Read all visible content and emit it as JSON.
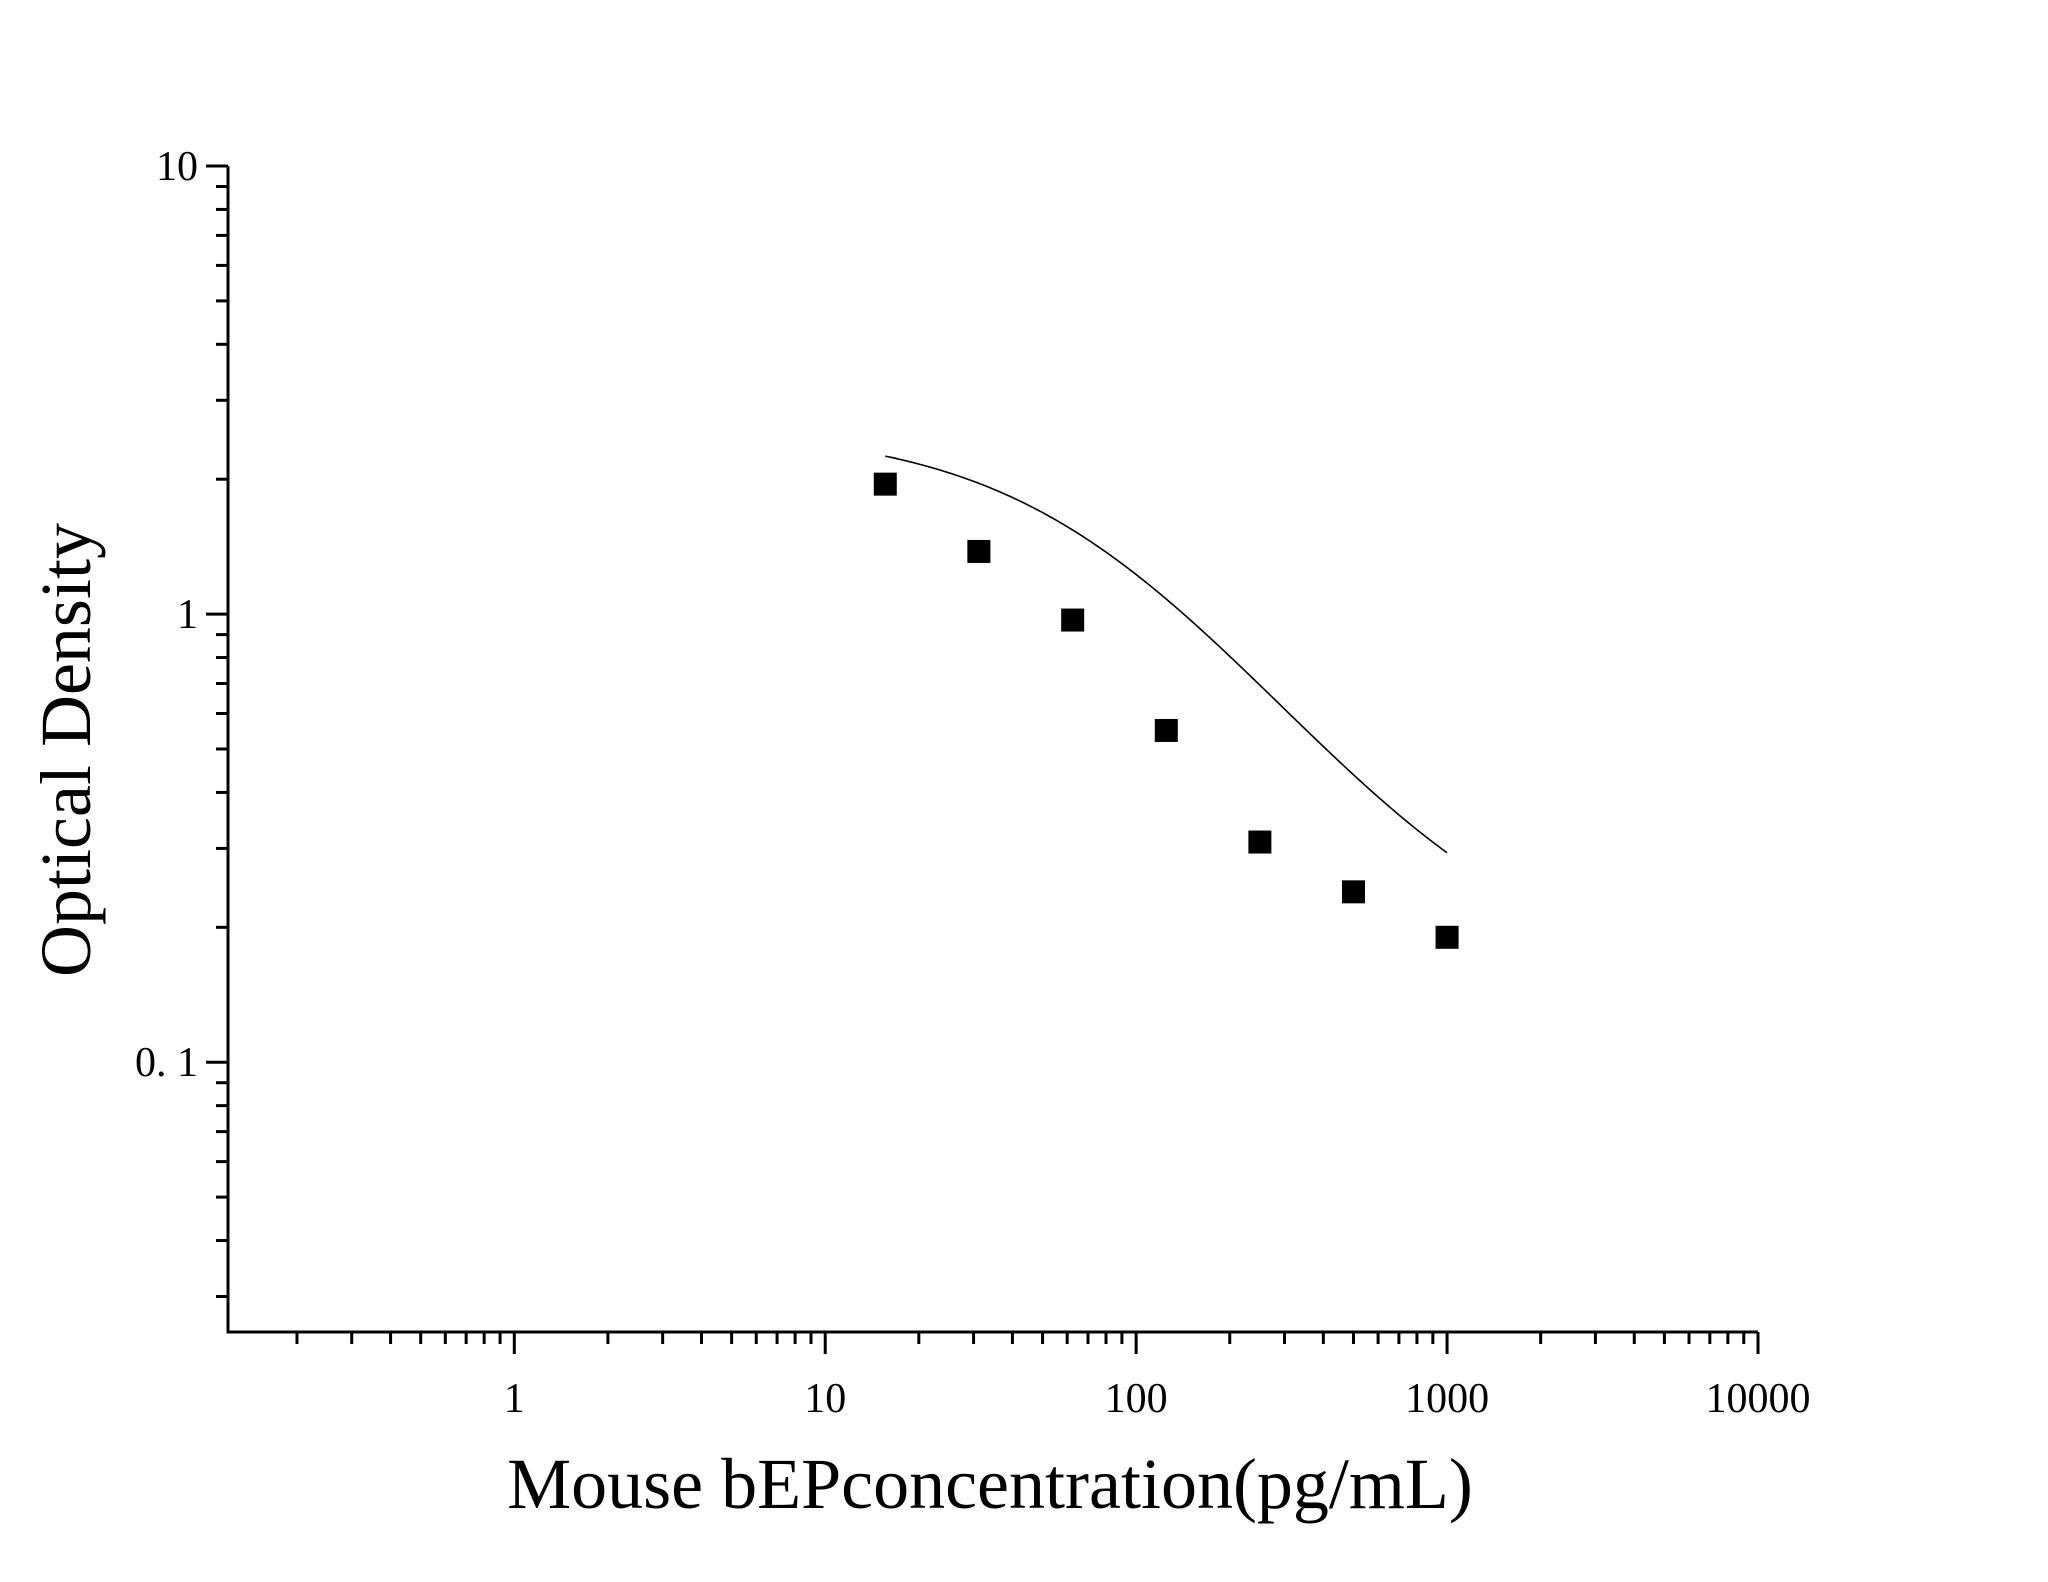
{
  "chart_data": {
    "type": "scatter",
    "xlabel": "Mouse bEPconcentration(pg/mL)",
    "ylabel": "Optical Density",
    "x_scale": "log",
    "y_scale": "log",
    "xlim": [
      0.12,
      10000
    ],
    "ylim": [
      0.025,
      10
    ],
    "x_ticks": [
      {
        "value": 1,
        "label": "1"
      },
      {
        "value": 10,
        "label": "10"
      },
      {
        "value": 100,
        "label": "100"
      },
      {
        "value": 1000,
        "label": "1000"
      },
      {
        "value": 10000,
        "label": "10000"
      }
    ],
    "y_ticks": [
      {
        "value": 0.1,
        "label": "0. 1"
      },
      {
        "value": 1,
        "label": "1"
      },
      {
        "value": 10,
        "label": "10"
      }
    ],
    "grid": false,
    "series": [
      {
        "marker": "square",
        "color": "#000000",
        "points": [
          {
            "x": 15.6,
            "y": 1.95
          },
          {
            "x": 31.2,
            "y": 1.38
          },
          {
            "x": 62.5,
            "y": 0.97
          },
          {
            "x": 125,
            "y": 0.55
          },
          {
            "x": 250,
            "y": 0.31
          },
          {
            "x": 500,
            "y": 0.24
          },
          {
            "x": 1000,
            "y": 0.19
          }
        ]
      }
    ],
    "fit_curve": {
      "type": "4PL",
      "color": "#000000",
      "x_range": [
        15.6,
        1000
      ],
      "A": 2.6,
      "D": 0.15,
      "C": 80,
      "B": 1.1
    }
  }
}
